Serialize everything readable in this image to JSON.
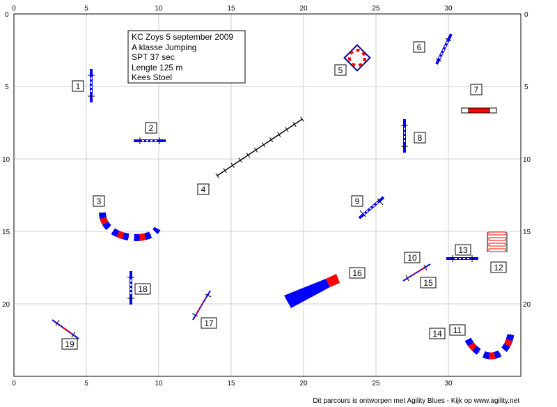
{
  "course": {
    "info_lines": [
      "KC Zoys 5 september 2009",
      "A klasse Jumping",
      "SPT 37 sec",
      "Lengte 125 m",
      "Kees Stoel"
    ],
    "footer": "Dit parcours is ontworpen met Agility Blues - Kijk op www.agility.net",
    "x_ticks": [
      "0",
      "5",
      "10",
      "15",
      "20",
      "25",
      "30"
    ],
    "y_ticks": [
      "0",
      "5",
      "10",
      "15",
      "20"
    ],
    "colors": {
      "blue": "#0000ff",
      "red": "#ff0000",
      "dark": "#00008b",
      "grid": "#cfcfcf"
    }
  },
  "obstacles": [
    {
      "label": "1",
      "type": "jump",
      "x": 5.3,
      "y": 5.0
    },
    {
      "label": "2",
      "type": "jump",
      "x": 9.2,
      "y": 8.7
    },
    {
      "label": "3",
      "type": "tunnel",
      "x": 6.3,
      "y": 13.4
    },
    {
      "label": "4",
      "type": "weave",
      "x": 14.2,
      "y": 11.3
    },
    {
      "label": "5",
      "type": "tire",
      "x": 23.7,
      "y": 3.2
    },
    {
      "label": "6",
      "type": "jump",
      "x": 29.7,
      "y": 2.5
    },
    {
      "label": "7",
      "type": "wall",
      "x": 32.2,
      "y": 6.7
    },
    {
      "label": "8",
      "type": "jump",
      "x": 27.1,
      "y": 8.4
    },
    {
      "label": "9",
      "type": "jump",
      "x": 24.8,
      "y": 13.2
    },
    {
      "label": "10",
      "type": "jump",
      "x": 28.0,
      "y": 17.2
    },
    {
      "label": "11",
      "type": "tunnel",
      "x": 32.5,
      "y": 22.8
    },
    {
      "label": "12",
      "type": "long",
      "x": 33.5,
      "y": 15.3
    },
    {
      "label": "13",
      "type": "jump",
      "x": 31.0,
      "y": 16.9
    },
    {
      "label": "14",
      "type": "tunnel",
      "x": 32.5,
      "y": 22.8
    },
    {
      "label": "15",
      "type": "jump",
      "x": 28.0,
      "y": 17.2
    },
    {
      "label": "16",
      "type": "chute",
      "x": 20.3,
      "y": 18.6
    },
    {
      "label": "17",
      "type": "jump",
      "x": 13.0,
      "y": 20.1
    },
    {
      "label": "18",
      "type": "jump",
      "x": 8.1,
      "y": 18.9
    },
    {
      "label": "19",
      "type": "jump",
      "x": 3.5,
      "y": 21.7
    }
  ]
}
